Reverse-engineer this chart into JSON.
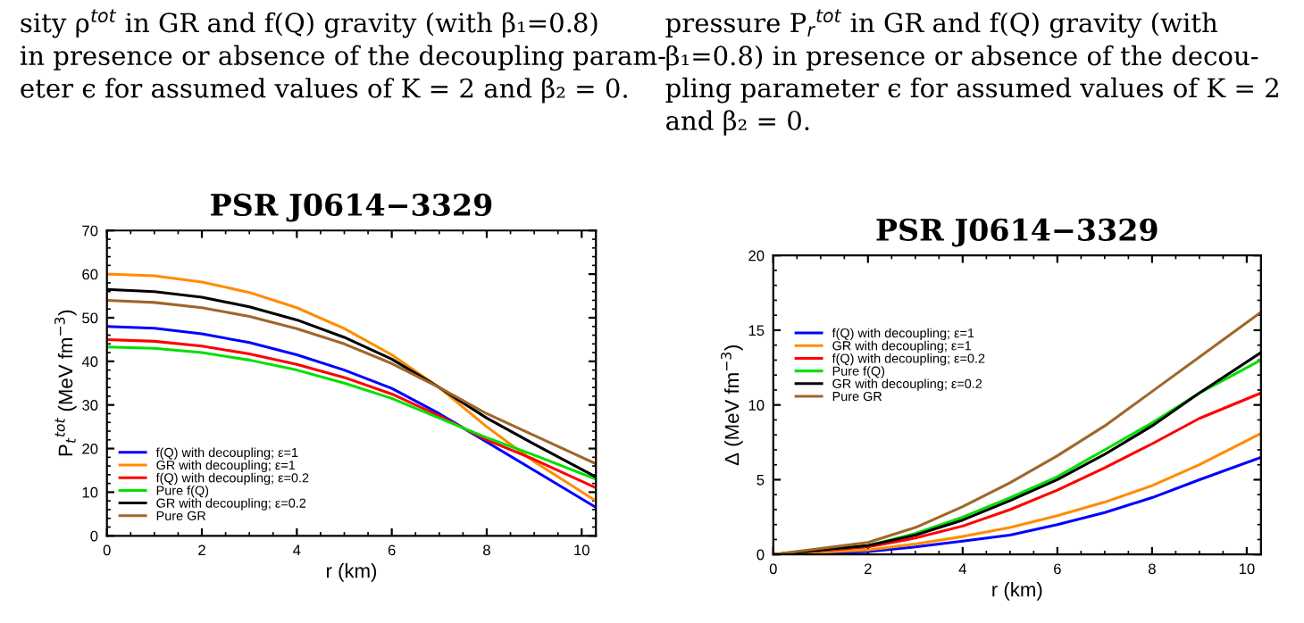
{
  "chart_data": [
    {
      "type": "line",
      "title": "PSR J0614−3329",
      "xlabel": "r (km)",
      "ylabel": "P$_{t}$$^{tot}$ (MeV fm$^{−3}$)",
      "annotations": [
        "sity ρ$^{tot}$ in GR and f(Q) gravity (with β₁=0.8)\nin presence or absence of the decoupling param-\neter ϵ for assumed values of K = 2 and β₂ = 0."
      ],
      "x": [
        0,
        1,
        2,
        3,
        4,
        5,
        6,
        7,
        8,
        9,
        10.3
      ],
      "series": [
        {
          "name": "f(Q) with decoupling; ε=1",
          "color": "#0000ff",
          "values": [
            48,
            47.6,
            46.3,
            44.3,
            41.5,
            38,
            33.8,
            28,
            21.5,
            15,
            6.5
          ]
        },
        {
          "name": "GR with decoupling; ε=1",
          "color": "#ff8c00",
          "values": [
            60,
            59.6,
            58.2,
            55.8,
            52.3,
            47.5,
            41.5,
            34,
            25,
            17,
            8
          ]
        },
        {
          "name": "f(Q) with decoupling; ε=0.2",
          "color": "#ff0000",
          "values": [
            45,
            44.6,
            43.5,
            41.7,
            39.3,
            36.3,
            32.5,
            27.5,
            22,
            17.5,
            11
          ]
        },
        {
          "name": "Pure f(Q)",
          "color": "#00e000",
          "values": [
            43.3,
            43,
            42,
            40.3,
            38,
            35,
            31.5,
            27,
            22.5,
            18.5,
            13
          ]
        },
        {
          "name": "GR with decoupling; ε=0.2",
          "color": "#000000",
          "values": [
            56.5,
            56,
            54.7,
            52.5,
            49.5,
            45.5,
            40.5,
            34,
            27,
            21,
            13.5
          ]
        },
        {
          "name": "Pure GR",
          "color": "#a0662a",
          "values": [
            54,
            53.5,
            52.3,
            50.3,
            47.5,
            44,
            39.5,
            34,
            28,
            23,
            16.5
          ]
        }
      ],
      "xlim": [
        0,
        10.3
      ],
      "xticks": [
        0,
        2,
        4,
        6,
        8,
        10
      ],
      "ylim": [
        0,
        70
      ],
      "yticks": [
        0,
        10,
        20,
        30,
        40,
        50,
        60,
        70
      ],
      "legend": "bottom left",
      "grid": false
    },
    {
      "type": "line",
      "title": "PSR J0614−3329",
      "xlabel": "r (km)",
      "ylabel": "Δ (MeV fm$^{−3}$)",
      "annotations": [
        "pressure P$_{r}$$^{tot}$ in GR and f(Q) gravity (with\nβ₁=0.8) in presence or absence of the decou-\npling parameter ϵ for assumed values of K = 2\nand β₂ = 0."
      ],
      "x": [
        0,
        1,
        2,
        3,
        4,
        5,
        6,
        7,
        8,
        9,
        10.3
      ],
      "series": [
        {
          "name": "f(Q) with decoupling; ε=1",
          "color": "#0000ff",
          "values": [
            0,
            null,
            0.2,
            0.5,
            0.9,
            1.3,
            2,
            2.8,
            3.8,
            5,
            6.5
          ]
        },
        {
          "name": "GR with decoupling; ε=1",
          "color": "#ff8c00",
          "values": [
            0,
            null,
            0.3,
            0.7,
            1.2,
            1.8,
            2.6,
            3.5,
            4.6,
            6,
            8.1
          ]
        },
        {
          "name": "f(Q) with decoupling; ε=0.2",
          "color": "#ff0000",
          "values": [
            0,
            null,
            0.5,
            1.1,
            1.9,
            3,
            4.3,
            5.8,
            7.4,
            9.1,
            10.8
          ]
        },
        {
          "name": "Pure f(Q)",
          "color": "#00e000",
          "values": [
            0,
            null,
            0.6,
            1.4,
            2.5,
            3.8,
            5.2,
            7,
            8.8,
            10.8,
            13
          ]
        },
        {
          "name": "GR with decoupling; ε=0.2",
          "color": "#000000",
          "values": [
            0,
            null,
            0.6,
            1.3,
            2.3,
            3.6,
            5,
            6.7,
            8.6,
            10.8,
            13.5
          ]
        },
        {
          "name": "Pure GR",
          "color": "#a0662a",
          "values": [
            0,
            null,
            0.8,
            1.8,
            3.2,
            4.8,
            6.6,
            8.6,
            10.9,
            13.2,
            16.2
          ]
        }
      ],
      "xlim": [
        0,
        10.3
      ],
      "xticks": [
        0,
        2,
        4,
        6,
        8,
        10
      ],
      "ylim": [
        0,
        20
      ],
      "yticks": [
        0,
        5,
        10,
        15,
        20
      ],
      "legend": "top left",
      "grid": false
    }
  ]
}
